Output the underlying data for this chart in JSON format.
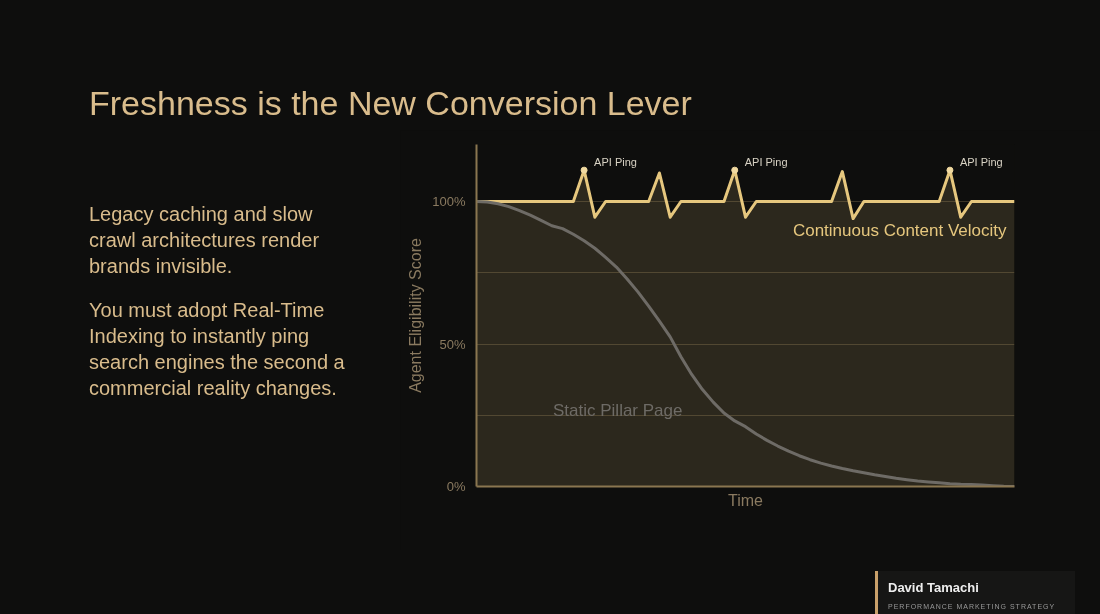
{
  "chart_data": {
    "type": "line",
    "title": "Freshness is the New Conversion Lever",
    "ylabel": "Agent Eligibility Score",
    "xlabel": "Time",
    "categories": [
      null,
      null,
      null,
      null,
      null,
      null,
      null,
      null,
      null,
      null,
      null,
      null,
      null,
      null,
      null,
      null,
      null,
      null,
      null,
      null,
      null,
      null,
      null,
      null,
      null,
      null,
      null,
      null,
      null,
      null,
      null,
      null,
      null,
      null,
      null,
      null,
      null,
      null,
      null,
      null,
      null,
      null,
      null,
      null,
      null,
      null,
      null,
      null,
      null,
      null,
      null
    ],
    "ylim": [
      0,
      120
    ],
    "yticks": [
      {
        "value": 0,
        "label": "0%"
      },
      {
        "value": 25,
        "label": null
      },
      {
        "value": 50,
        "label": "50%"
      },
      {
        "value": 75,
        "label": null
      },
      {
        "value": 100,
        "label": "100%"
      }
    ],
    "tick_labels": "y",
    "grid": "y",
    "marker": "none",
    "line_style": "solid",
    "series": [
      {
        "name": "Continuous Content Velocity",
        "type": "area",
        "color": "#e6c77e",
        "values": [
          100,
          100,
          100,
          100,
          100,
          100,
          100,
          100,
          100,
          100,
          111,
          94.5,
          100,
          100,
          100,
          100,
          100,
          110,
          94.5,
          100,
          100,
          100,
          100,
          100,
          111,
          94.5,
          100,
          100,
          100,
          100,
          100,
          100,
          100,
          100,
          110.5,
          94,
          100,
          100,
          100,
          100,
          100,
          100,
          100,
          100,
          111,
          94.5,
          100,
          100,
          100,
          100,
          100
        ]
      },
      {
        "name": "Static Pillar Page",
        "color": "#6e6b66",
        "values": [
          100,
          99.8,
          99.2,
          98.2,
          96.8,
          95.2,
          93.4,
          91.5,
          90.5,
          88.5,
          86.2,
          83.6,
          80.4,
          77,
          72.8,
          68.3,
          63.3,
          58,
          52.5,
          45.5,
          39.3,
          34,
          29.6,
          25.8,
          23,
          21,
          18.4,
          16.2,
          14.2,
          12.4,
          10.8,
          9.4,
          8.2,
          7.2,
          6.3,
          5.5,
          4.8,
          4.1,
          3.5,
          2.9,
          2.4,
          1.9,
          1.6,
          1.3,
          1.0,
          0.8,
          0.7,
          0.5,
          0.3,
          0.1,
          0
        ]
      }
    ],
    "annotations": [
      "Legacy caching and slow crawl architectures render brands invisible.",
      "You must adopt Real-Time Indexing to instantly ping search engines the second a commercial reality changes.",
      "API Ping",
      "API Ping",
      "API Ping",
      "David Tamachi",
      "PERFORMANCE MARKETING STRATEGY"
    ]
  }
}
